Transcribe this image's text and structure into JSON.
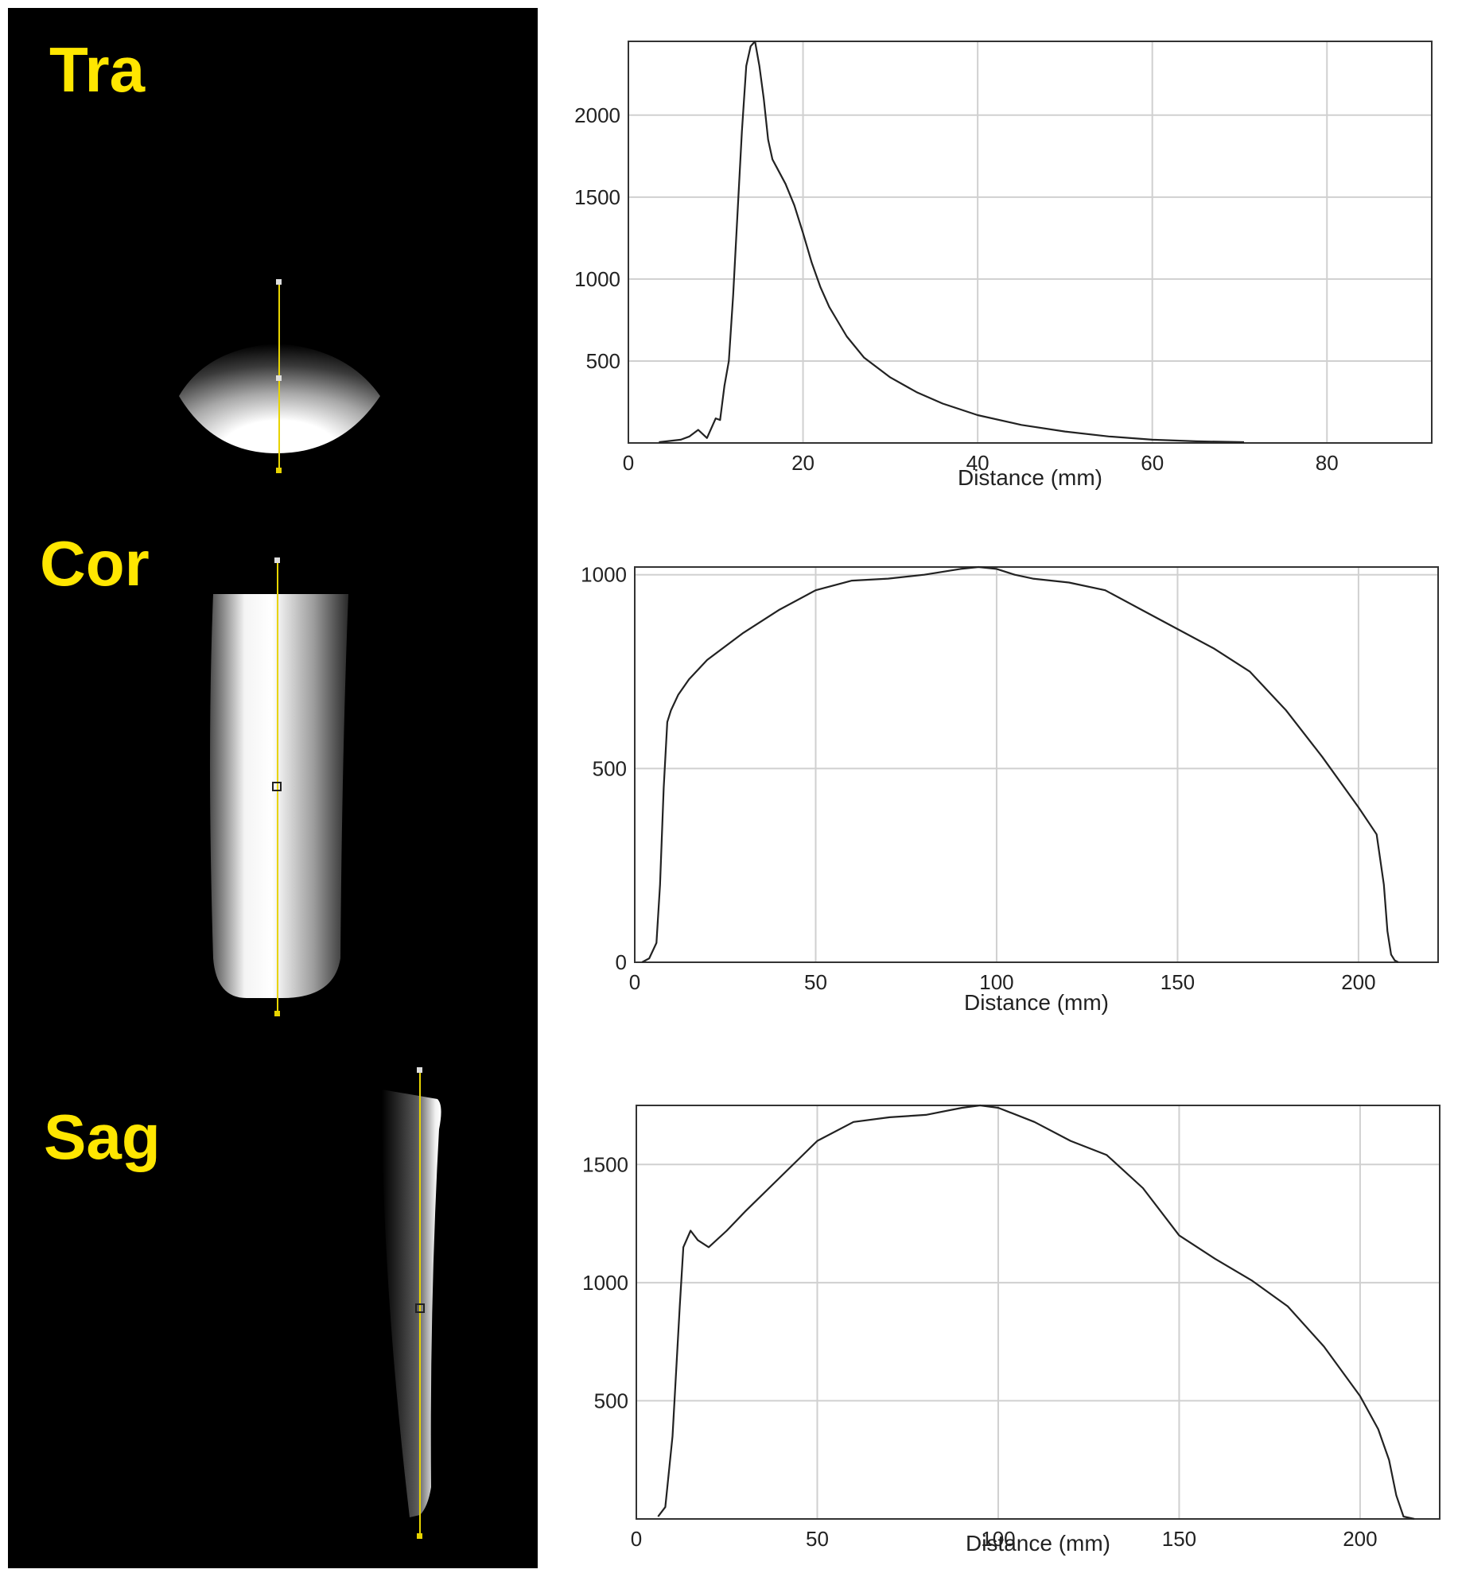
{
  "panels": [
    {
      "label": "Tra"
    },
    {
      "label": "Cor"
    },
    {
      "label": "Sag"
    }
  ],
  "colors": {
    "label": "#ffe600",
    "line": "#222222",
    "grid": "#d0d0d0",
    "profile_line": "#e8d400"
  },
  "chart_data": [
    {
      "type": "line",
      "xlabel": "Distance (mm)",
      "ylabel": "",
      "xlim": [
        0,
        92
      ],
      "ylim": [
        0,
        2450
      ],
      "xticks": [
        0,
        20,
        40,
        60,
        80
      ],
      "yticks": [
        500,
        1000,
        1500,
        2000
      ],
      "grid": true,
      "series": [
        {
          "x": [
            3.5,
            6,
            7,
            8,
            9,
            10,
            10.5,
            11,
            11.5,
            12,
            12.5,
            13,
            13.5,
            14,
            14.5,
            15,
            15.5,
            16,
            16.5,
            17,
            18,
            19,
            20,
            21,
            22,
            23,
            24,
            25,
            27,
            30,
            33,
            36,
            40,
            45,
            50,
            55,
            60,
            65,
            70.5
          ],
          "y": [
            5,
            20,
            40,
            80,
            30,
            150,
            140,
            350,
            500,
            900,
            1400,
            1900,
            2300,
            2420,
            2450,
            2300,
            2100,
            1850,
            1730,
            1680,
            1580,
            1450,
            1280,
            1100,
            950,
            830,
            740,
            650,
            520,
            400,
            310,
            240,
            170,
            110,
            70,
            40,
            20,
            10,
            5
          ]
        }
      ]
    },
    {
      "type": "line",
      "xlabel": "Distance (mm)",
      "ylabel": "",
      "xlim": [
        0,
        222
      ],
      "ylim": [
        0,
        1020
      ],
      "xticks": [
        0,
        50,
        100,
        150,
        200
      ],
      "yticks": [
        0,
        500,
        1000
      ],
      "grid": true,
      "series": [
        {
          "x": [
            2,
            4,
            6,
            7,
            8,
            9,
            10,
            12,
            15,
            20,
            30,
            40,
            50,
            60,
            70,
            80,
            90,
            95,
            100,
            105,
            110,
            120,
            130,
            140,
            150,
            160,
            170,
            180,
            190,
            200,
            205,
            207,
            208,
            209,
            210,
            211
          ],
          "y": [
            0,
            10,
            50,
            200,
            450,
            620,
            650,
            690,
            730,
            780,
            850,
            910,
            960,
            985,
            990,
            1000,
            1015,
            1020,
            1015,
            1000,
            990,
            980,
            960,
            910,
            860,
            810,
            750,
            650,
            530,
            400,
            330,
            200,
            80,
            20,
            5,
            0
          ]
        }
      ]
    },
    {
      "type": "line",
      "xlabel": "Distance (mm)",
      "ylabel": "",
      "xlim": [
        0,
        222
      ],
      "ylim": [
        0,
        1750
      ],
      "xticks": [
        0,
        50,
        100,
        150,
        200
      ],
      "yticks": [
        500,
        1000,
        1500
      ],
      "grid": true,
      "series": [
        {
          "x": [
            6,
            8,
            10,
            12,
            13,
            15,
            17,
            20,
            25,
            30,
            40,
            50,
            60,
            70,
            80,
            90,
            95,
            100,
            110,
            120,
            130,
            140,
            150,
            160,
            170,
            180,
            190,
            200,
            205,
            208,
            210,
            212,
            215
          ],
          "y": [
            10,
            50,
            350,
            900,
            1150,
            1220,
            1180,
            1150,
            1220,
            1300,
            1450,
            1600,
            1680,
            1700,
            1710,
            1740,
            1750,
            1740,
            1680,
            1600,
            1540,
            1400,
            1200,
            1100,
            1010,
            900,
            730,
            520,
            380,
            250,
            100,
            10,
            0
          ]
        }
      ]
    }
  ]
}
